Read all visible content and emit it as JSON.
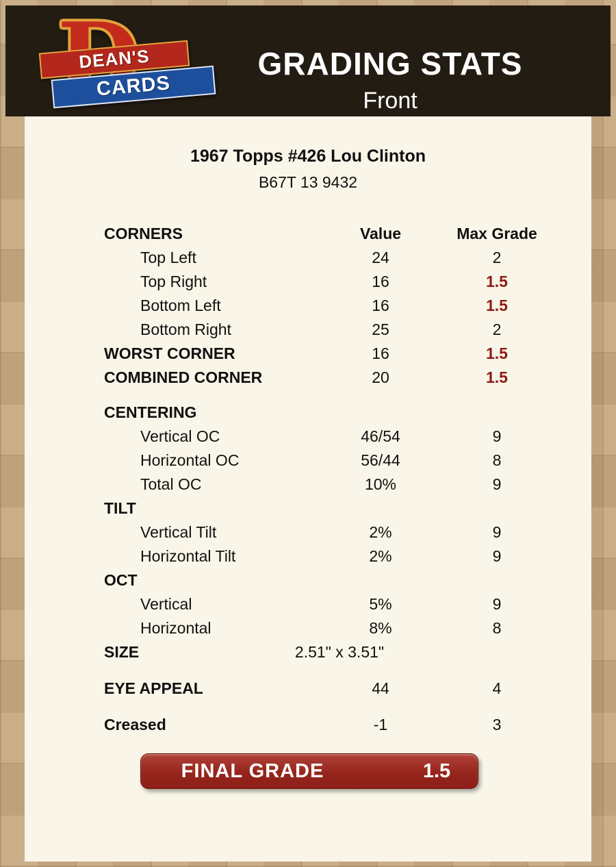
{
  "header": {
    "logo": {
      "d": "D",
      "dean": "DEAN'S",
      "cards": "CARDS"
    },
    "title": "GRADING STATS",
    "subtitle": "Front"
  },
  "card": {
    "title": "1967 Topps #426 Lou Clinton",
    "code": "B67T 13 9432"
  },
  "columns": {
    "value": "Value",
    "max": "Max Grade"
  },
  "rows": [
    {
      "label": "CORNERS"
    },
    {
      "label": "Top Left",
      "value": "24",
      "max": "2"
    },
    {
      "label": "Top Right",
      "value": "16",
      "max": "1.5"
    },
    {
      "label": "Bottom Left",
      "value": "16",
      "max": "1.5"
    },
    {
      "label": "Bottom Right",
      "value": "25",
      "max": "2"
    },
    {
      "label": "WORST CORNER",
      "value": "16",
      "max": "1.5"
    },
    {
      "label": "COMBINED CORNER",
      "value": "20",
      "max": "1.5"
    },
    {
      "label": "CENTERING"
    },
    {
      "label": "Vertical OC",
      "value": "46/54",
      "max": "9"
    },
    {
      "label": "Horizontal OC",
      "value": "56/44",
      "max": "8"
    },
    {
      "label": "Total OC",
      "value": "10%",
      "max": "9"
    },
    {
      "label": "TILT"
    },
    {
      "label": "Vertical Tilt",
      "value": "2%",
      "max": "9"
    },
    {
      "label": "Horizontal Tilt",
      "value": "2%",
      "max": "9"
    },
    {
      "label": "OCT"
    },
    {
      "label": "Vertical",
      "value": "5%",
      "max": "9"
    },
    {
      "label": "Horizontal",
      "value": "8%",
      "max": "8"
    },
    {
      "label": "SIZE",
      "value": "2.51\" x 3.51\""
    },
    {
      "label": "EYE APPEAL",
      "value": "44",
      "max": "4"
    },
    {
      "label": "Creased",
      "value": "-1",
      "max": "3"
    }
  ],
  "final": {
    "label": "FINAL GRADE",
    "value": "1.5"
  },
  "colors": {
    "maroon": "#8e1a12",
    "panel_bg": "#f9f5e8",
    "page_bg": "#c4a67d",
    "header_bg": "#231c13",
    "logo_red": "#b3271c",
    "logo_blue": "#1d4f9c",
    "logo_gold": "#e1a33b"
  }
}
